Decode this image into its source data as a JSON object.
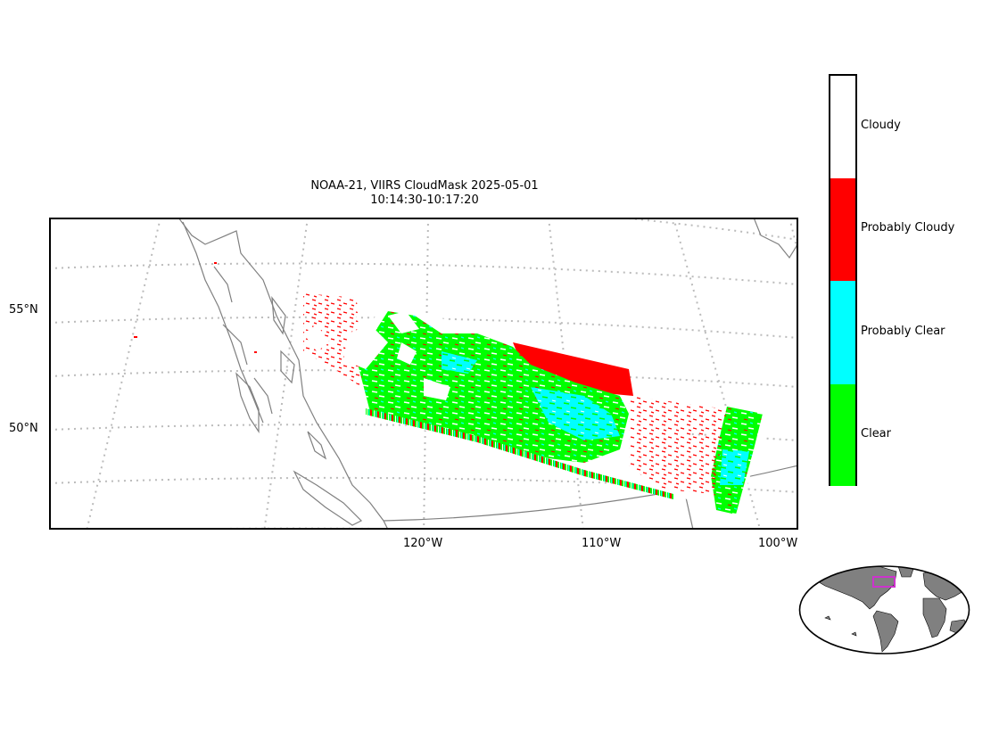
{
  "title": {
    "line1": "NOAA-21, VIIRS CloudMask 2025-05-01",
    "line2": "10:14:30-10:17:20"
  },
  "lat_labels": [
    "55°N",
    "50°N"
  ],
  "lon_labels": [
    "120°W",
    "110°W",
    "100°W"
  ],
  "legend": {
    "categories": [
      {
        "label": "Cloudy",
        "color": "#ffffff"
      },
      {
        "label": "Probably Cloudy",
        "color": "#ff0000"
      },
      {
        "label": "Probably Clear",
        "color": "#00ffff"
      },
      {
        "label": "Clear",
        "color": "#00ff00"
      }
    ]
  },
  "colors": {
    "coastline": "#808080",
    "graticule": "#bbbbbb",
    "land": "#808080",
    "inset_box": "#cc33cc"
  }
}
